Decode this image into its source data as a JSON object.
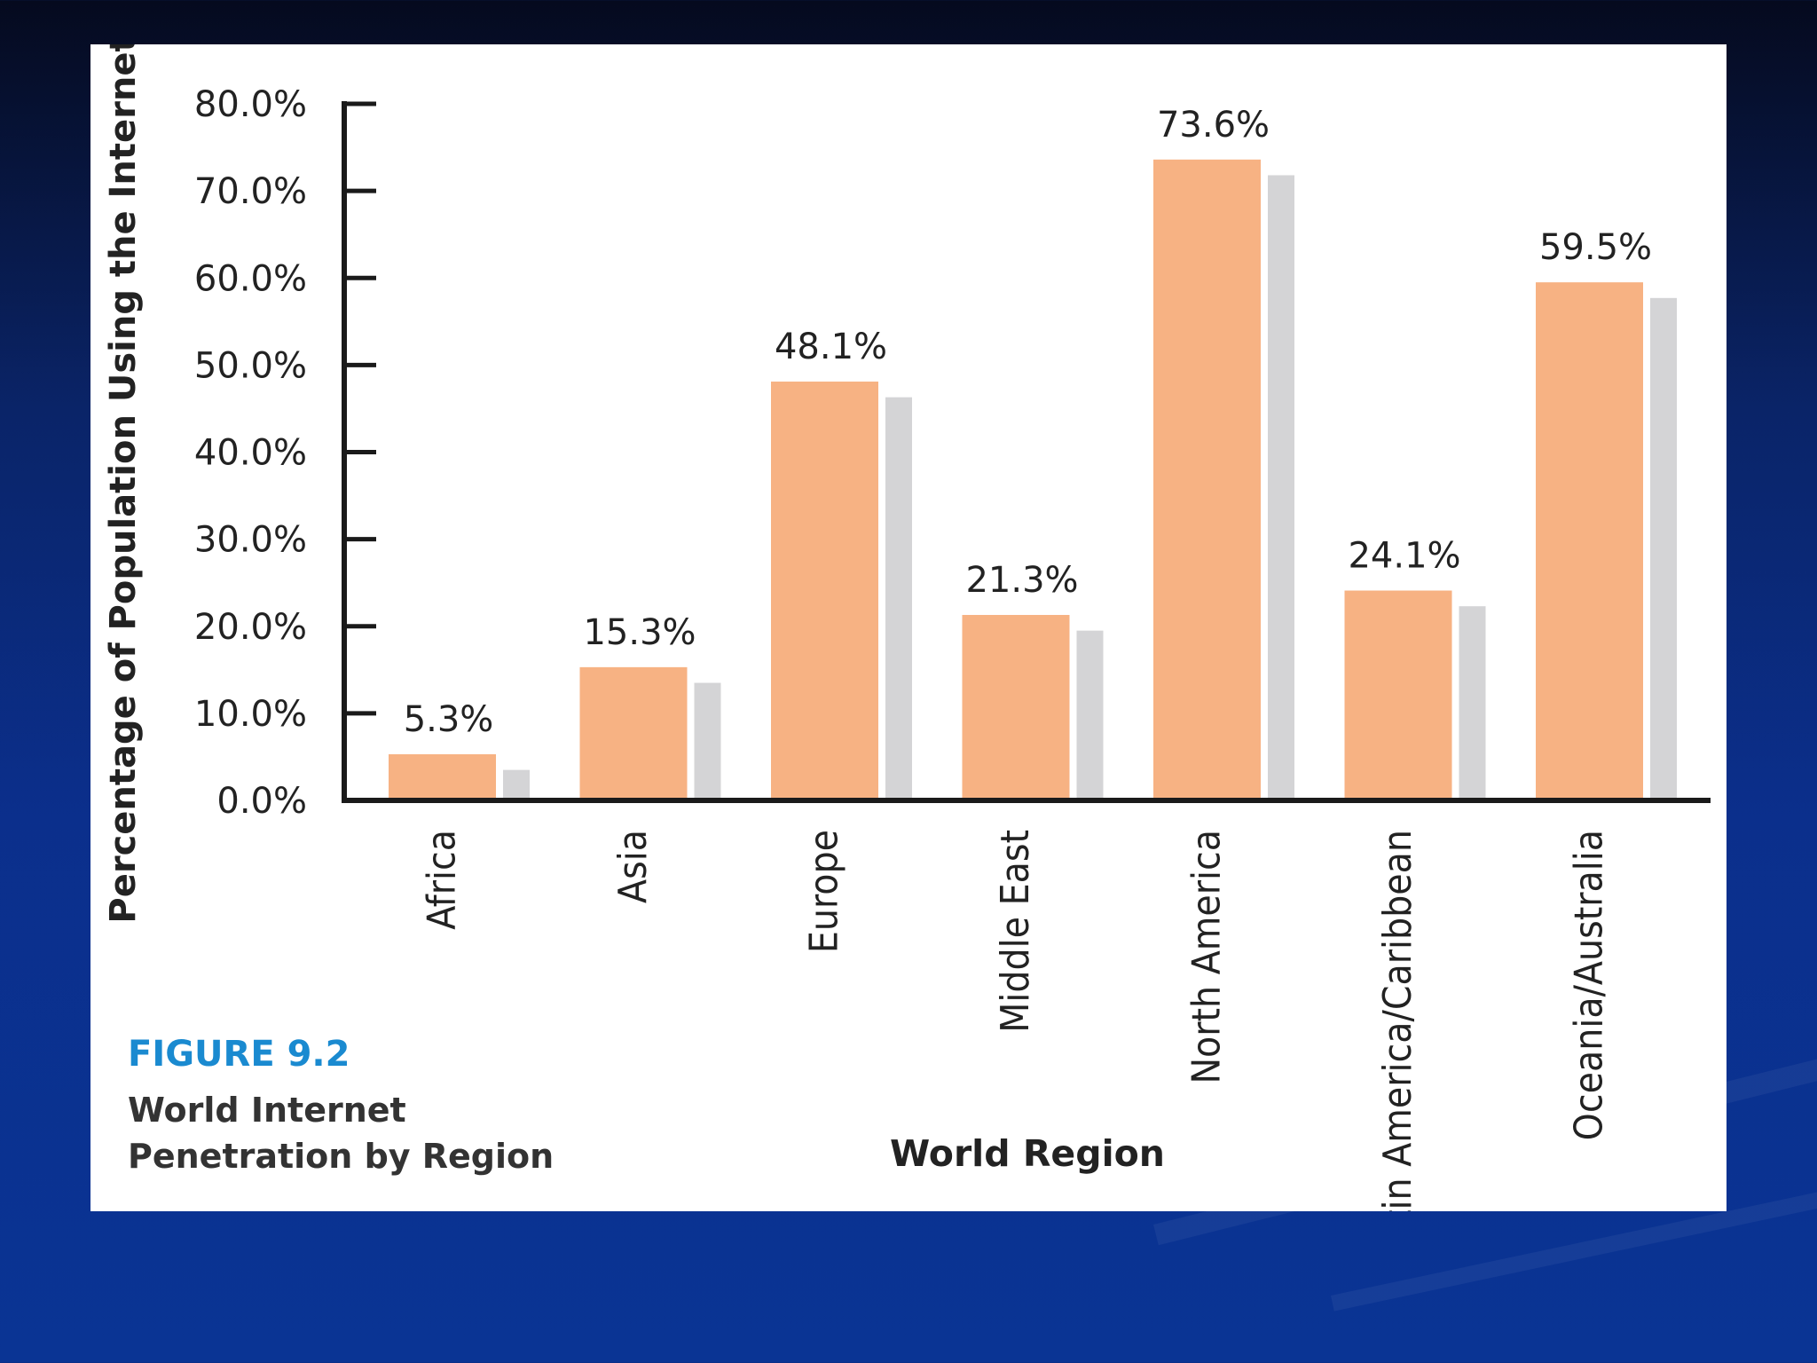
{
  "figure": {
    "number": "FIGURE 9.2",
    "caption_line1": "World Internet",
    "caption_line2": "Penetration by Region"
  },
  "colors": {
    "primary_bar": "#f7b283",
    "shadow_bar": "#d4d4d6",
    "figure_number": "#1a8ad0",
    "axis": "#1a1a1a"
  },
  "chart_data": {
    "type": "bar",
    "title": "World Internet Penetration by Region",
    "xlabel": "World Region",
    "ylabel": "Percentage of Population Using the Internet",
    "ylim": [
      0,
      80
    ],
    "yticks": [
      "0.0%",
      "10.0%",
      "20.0%",
      "30.0%",
      "40.0%",
      "50.0%",
      "60.0%",
      "70.0%",
      "80.0%"
    ],
    "categories": [
      "Africa",
      "Asia",
      "Europe",
      "Middle East",
      "North America",
      "Latin America/Caribbean",
      "Oceania/Australia"
    ],
    "series": [
      {
        "name": "Internet penetration",
        "values": [
          5.3,
          15.3,
          48.1,
          21.3,
          73.6,
          24.1,
          59.5
        ],
        "labels": [
          "5.3%",
          "15.3%",
          "48.1%",
          "21.3%",
          "73.6%",
          "24.1%",
          "59.5%"
        ]
      }
    ],
    "grid": false
  }
}
